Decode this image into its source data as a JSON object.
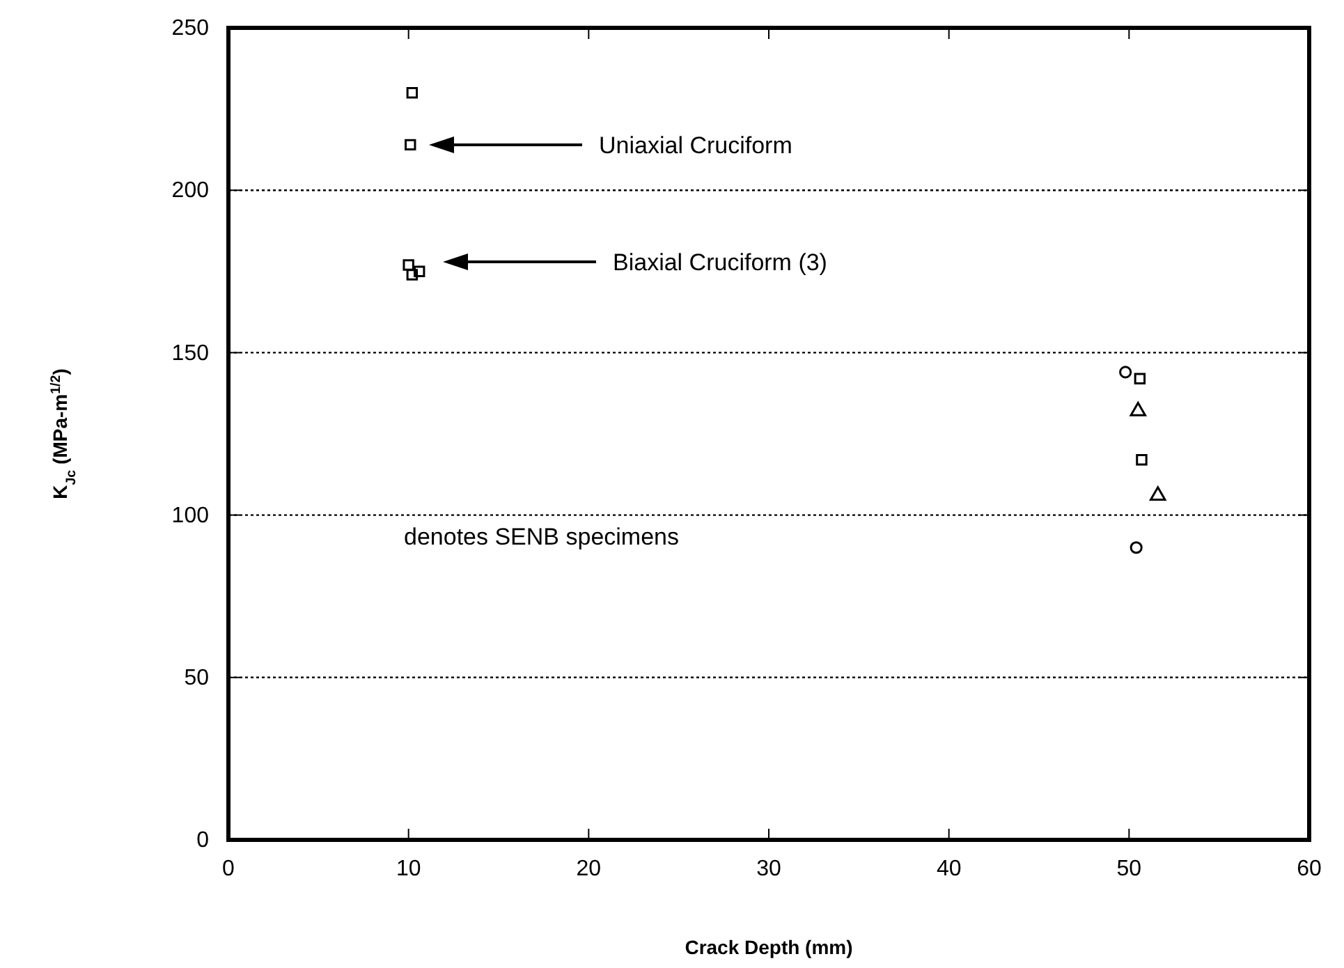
{
  "chart_data": {
    "type": "scatter",
    "xlabel": "Crack Depth (mm)",
    "ylabel": "K$_{Jc}$ (MPa-m$^{1/2}$)",
    "xlim": [
      0,
      60
    ],
    "xticks": [
      0,
      10,
      20,
      30,
      40,
      50,
      60
    ],
    "ylim": [
      0,
      250
    ],
    "yticks": [
      0,
      50,
      100,
      150,
      200,
      250
    ],
    "grid": "y",
    "series": [
      {
        "color": "#000000",
        "marker": "square",
        "x": [
          10.2,
          10.1
        ],
        "values": [
          230,
          214
        ]
      },
      {
        "color": "#000000",
        "marker": "square",
        "x": [
          10.0,
          10.6,
          10.2
        ],
        "values": [
          177,
          175,
          174
        ]
      },
      {
        "color": "#000000",
        "marker": "circle",
        "x": [
          49.8,
          50.4
        ],
        "values": [
          144,
          90
        ]
      },
      {
        "color": "#000000",
        "marker": "square",
        "x": [
          50.6,
          50.7
        ],
        "values": [
          142,
          117
        ]
      },
      {
        "color": "#000000",
        "marker": "triangle",
        "x": [
          50.5,
          51.6
        ],
        "values": [
          132,
          106
        ]
      }
    ],
    "annotations": [
      "Uniaxial Cruciform",
      "Biaxial Cruciform (3)",
      "denotes SENB specimens"
    ]
  }
}
